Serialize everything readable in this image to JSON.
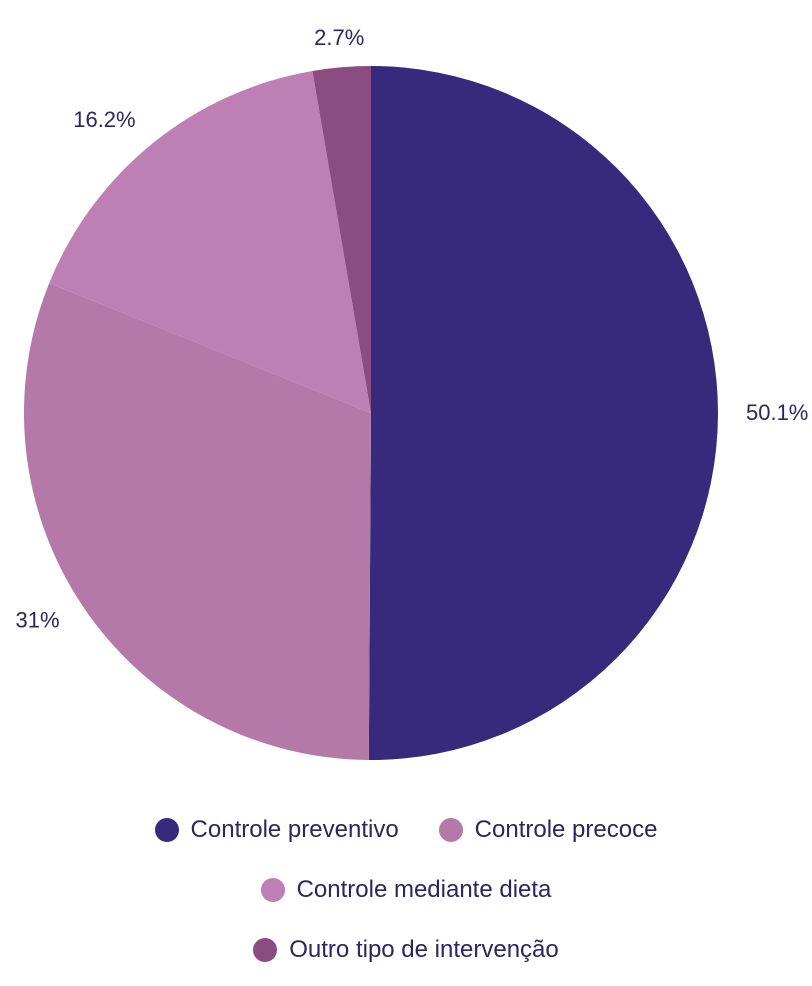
{
  "chart_data": {
    "type": "pie",
    "title": "",
    "slices": [
      {
        "name": "Controle preventivo",
        "value": 50.1,
        "label": "50.1%",
        "color": "#37297c"
      },
      {
        "name": "Controle precoce",
        "value": 31,
        "label": "31%",
        "color": "#b579a9"
      },
      {
        "name": "Controle mediante dieta",
        "value": 16.2,
        "label": "16.2%",
        "color": "#be80b4"
      },
      {
        "name": "Outro tipo de intervenção",
        "value": 2.7,
        "label": "2.7%",
        "color": "#8b4d81"
      }
    ],
    "legend_position": "bottom",
    "start_angle": "top",
    "direction": "clockwise"
  },
  "legend": {
    "rows": [
      [
        0,
        1
      ],
      [
        2
      ],
      [
        3
      ]
    ]
  }
}
